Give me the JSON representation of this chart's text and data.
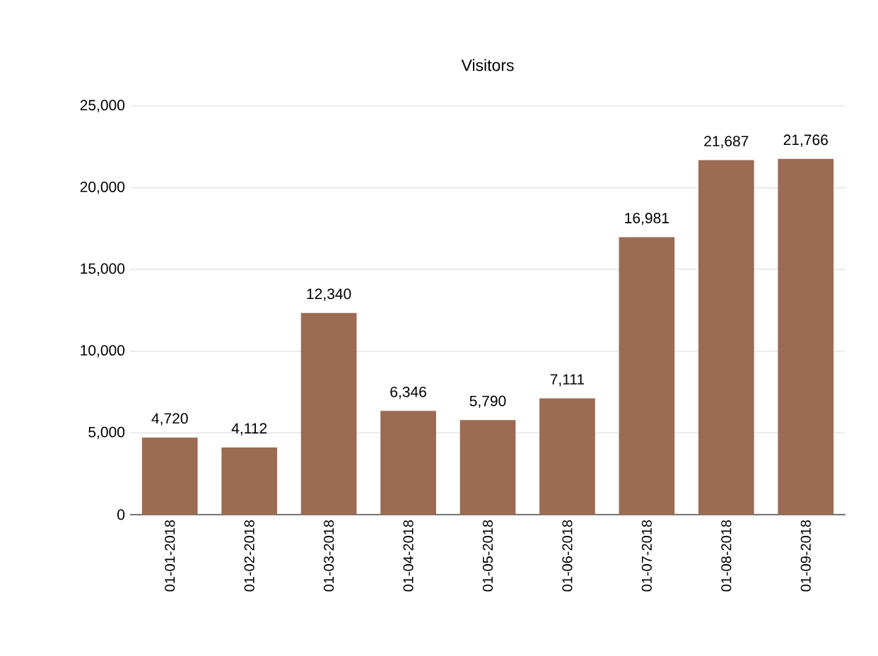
{
  "chart_data": {
    "type": "bar",
    "title": "Visitors",
    "categories": [
      "01-01-2018",
      "01-02-2018",
      "01-03-2018",
      "01-04-2018",
      "01-05-2018",
      "01-06-2018",
      "01-07-2018",
      "01-08-2018",
      "01-09-2018"
    ],
    "values": [
      4720,
      4112,
      12340,
      6346,
      5790,
      7111,
      16981,
      21687,
      21766
    ],
    "value_labels": [
      "4,720",
      "4,112",
      "12,340",
      "6,346",
      "5,790",
      "7,111",
      "16,981",
      "21,687",
      "21,766"
    ],
    "color": "#9c6b53",
    "ylim": [
      0,
      25000
    ],
    "yticks": [
      {
        "value": 0,
        "label": "0"
      },
      {
        "value": 5000,
        "label": "5,000"
      },
      {
        "value": 10000,
        "label": "10,000"
      },
      {
        "value": 15000,
        "label": "15,000"
      },
      {
        "value": 20000,
        "label": "20,000"
      },
      {
        "value": 25000,
        "label": "25,000"
      }
    ],
    "grid": "y"
  }
}
